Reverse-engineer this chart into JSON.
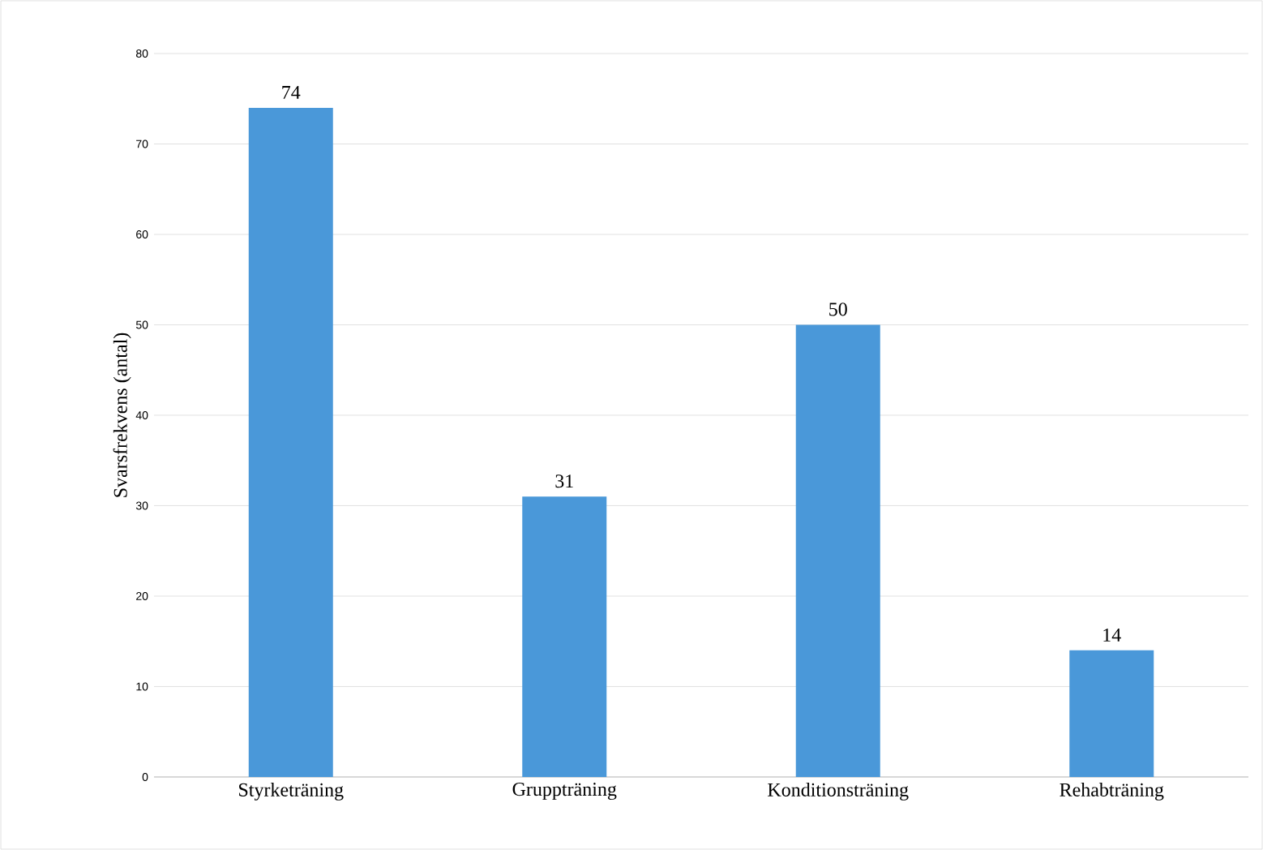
{
  "chart_data": {
    "type": "bar",
    "ylabel": "Svarsfrekvens (antal)",
    "categories": [
      "Styrketräning",
      "Gruppträning",
      "Konditionsträning",
      "Rehabträning"
    ],
    "values": [
      74,
      31,
      50,
      14
    ],
    "color": "#4a98d9",
    "ylim": [
      0,
      80
    ],
    "yticks": [
      0,
      10,
      20,
      30,
      40,
      50,
      60,
      70,
      80
    ],
    "grid": "y",
    "data_labels": true
  }
}
